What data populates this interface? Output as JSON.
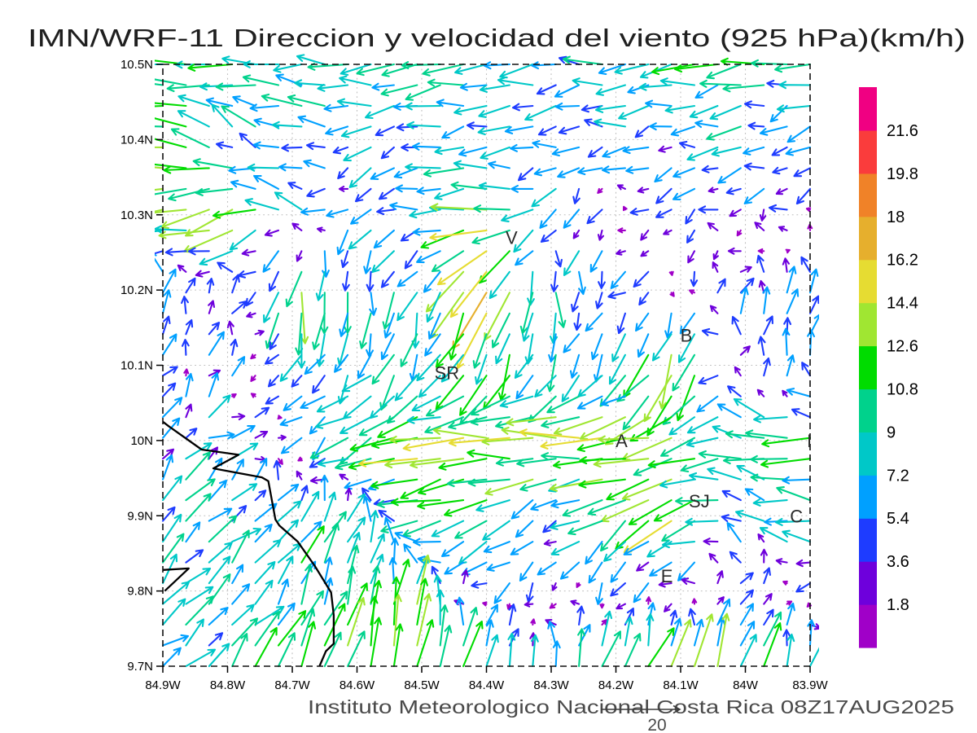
{
  "title": "IMN/WRF-11 Direccion y velocidad del viento (925 hPa)(km/h)",
  "caption": "Instituto Meteorologico Nacional Costa Rica 08Z17AUG2025",
  "reference_vector": {
    "label": "20",
    "speed_kmh": 20
  },
  "axes": {
    "x": {
      "values": [
        84.9,
        84.8,
        84.7,
        84.6,
        84.5,
        84.4,
        84.3,
        84.2,
        84.1,
        84.0,
        83.9
      ],
      "labels": [
        "84.9W",
        "84.8W",
        "84.7W",
        "84.6W",
        "84.5W",
        "84.4W",
        "84.3W",
        "84.2W",
        "84.1W",
        "84W",
        "83.9W"
      ]
    },
    "y": {
      "values": [
        10.5,
        10.4,
        10.3,
        10.2,
        10.1,
        10.0,
        9.9,
        9.8,
        9.7
      ],
      "labels": [
        "10.5N",
        "10.4N",
        "10.3N",
        "10.2N",
        "10.1N",
        "10N",
        "9.9N",
        "9.8N",
        "9.7N"
      ]
    }
  },
  "colorbar": {
    "levels": [
      1.8,
      3.6,
      5.4,
      7.2,
      9,
      10.8,
      12.6,
      14.4,
      16.2,
      18,
      19.8,
      21.6
    ],
    "labels": [
      "1.8",
      "3.6",
      "5.4",
      "7.2",
      "9",
      "10.8",
      "12.6",
      "14.4",
      "16.2",
      "18",
      "19.8",
      "21.6"
    ],
    "colors": [
      "#a000c8",
      "#6e00dc",
      "#1e3cff",
      "#00a0ff",
      "#00c8c8",
      "#00d28c",
      "#00dc00",
      "#a0e632",
      "#e6dc32",
      "#e6af2d",
      "#f08228",
      "#fa3c3c",
      "#f00082"
    ]
  },
  "stations": [
    {
      "label": "V",
      "lon": 84.37,
      "lat": 10.27
    },
    {
      "label": "SR",
      "lon": 84.47,
      "lat": 10.09
    },
    {
      "label": "B",
      "lon": 84.1,
      "lat": 10.14
    },
    {
      "label": "A",
      "lon": 84.2,
      "lat": 10.0
    },
    {
      "label": "SJ",
      "lon": 84.08,
      "lat": 9.92
    },
    {
      "label": "C",
      "lon": 83.93,
      "lat": 9.9
    },
    {
      "label": "E",
      "lon": 84.13,
      "lat": 9.82
    },
    {
      "label": "I",
      "lon": 83.91,
      "lat": 10.0
    }
  ],
  "coastline": [
    [
      [
        84.9,
        10.025
      ],
      [
        84.891,
        10.019
      ],
      [
        84.84,
        9.988
      ],
      [
        84.783,
        9.981
      ],
      [
        84.822,
        9.963
      ],
      [
        84.747,
        9.951
      ],
      [
        84.737,
        9.946
      ],
      [
        84.726,
        9.895
      ],
      [
        84.72,
        9.887
      ],
      [
        84.692,
        9.866
      ],
      [
        84.665,
        9.833
      ],
      [
        84.64,
        9.798
      ],
      [
        84.636,
        9.768
      ],
      [
        84.636,
        9.73
      ],
      [
        84.648,
        9.72
      ],
      [
        84.658,
        9.7
      ]
    ],
    [
      [
        84.9,
        9.828
      ],
      [
        84.86,
        9.83
      ],
      [
        84.897,
        9.8
      ]
    ]
  ],
  "chart_data": {
    "type": "quiver",
    "title": "IMN/WRF-11 Direccion y velocidad del viento (925 hPa)(km/h)",
    "units": "km/h",
    "level_hPa": 925,
    "lon_range": [
      84.9,
      83.9
    ],
    "lat_range": [
      9.7,
      10.5
    ],
    "grid_lons": [
      84.9,
      84.8,
      84.7,
      84.6,
      84.5,
      84.4,
      84.3,
      84.2,
      84.1,
      84.0,
      83.9
    ],
    "grid_lats": [
      10.5,
      10.4,
      10.3,
      10.2,
      10.1,
      10.0,
      9.9,
      9.8,
      9.7
    ],
    "u_kmh": [
      [
        -8,
        -9,
        -9,
        -9,
        -8,
        -8,
        -7,
        -8,
        -9,
        -9,
        -8
      ],
      [
        -13,
        -5,
        -7,
        -5,
        -6,
        -5,
        -5,
        -5,
        -5,
        -6,
        -5
      ],
      [
        -12,
        -15,
        -4,
        -4,
        -7,
        -13,
        -3,
        -2,
        -2,
        -2,
        -3
      ],
      [
        1,
        2,
        -2,
        2,
        -3,
        -8,
        1,
        -2,
        -1,
        1,
        1
      ],
      [
        1,
        2,
        -3,
        -4,
        -4,
        -3,
        -5,
        -4,
        -6,
        0,
        2
      ],
      [
        4,
        4,
        -2,
        -9,
        -13,
        -14,
        -13,
        -15,
        -11,
        -9,
        -11
      ],
      [
        5,
        5,
        4,
        2,
        -12,
        -10,
        -5,
        -8,
        -13,
        -6,
        -7
      ],
      [
        5,
        5,
        4,
        3,
        2,
        -2,
        -2,
        -2,
        -1,
        2,
        -2
      ],
      [
        5,
        6,
        5,
        3,
        2,
        3,
        2,
        4,
        4,
        3,
        3
      ]
    ],
    "v_kmh": [
      [
        1,
        0,
        -1,
        0,
        -1,
        -1,
        -1,
        0,
        -1,
        -1,
        -2
      ],
      [
        2,
        4,
        3,
        -2,
        -2,
        -2,
        -1,
        -1,
        -1,
        -2,
        -2
      ],
      [
        -2,
        -7,
        4,
        -4,
        -1,
        0,
        -3,
        -2,
        -1,
        -1,
        -1
      ],
      [
        4,
        3,
        -12,
        -8,
        -7,
        -13,
        -8,
        -2,
        -3,
        5,
        4
      ],
      [
        3,
        4,
        -4,
        -6,
        -7,
        -9,
        -8,
        -5,
        -14,
        5,
        7
      ],
      [
        4,
        3,
        -3,
        -5,
        -2,
        1,
        0,
        -1,
        -4,
        1,
        -1
      ],
      [
        5,
        5,
        6,
        6,
        -3,
        -4,
        -3,
        -5,
        -7,
        3,
        2
      ],
      [
        5,
        6,
        8,
        9,
        10,
        -3,
        -2,
        -3,
        -2,
        5,
        -3
      ],
      [
        5,
        6,
        9,
        11,
        11,
        10,
        8,
        10,
        12,
        10,
        7
      ]
    ],
    "legend_position": "right",
    "grid": true
  }
}
